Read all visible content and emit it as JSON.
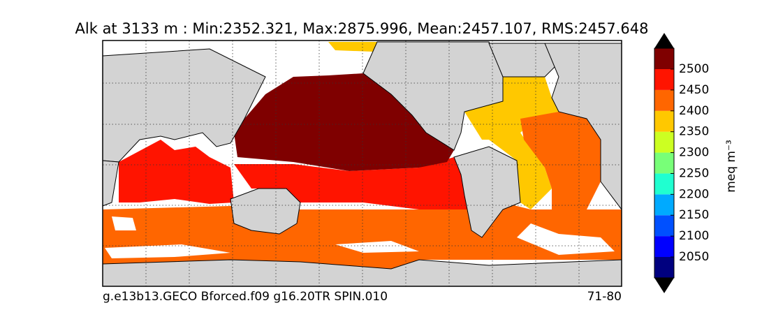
{
  "title": "Alk at 3133 m : Min:2352.321, Max:2875.996, Mean:2457.107, RMS:2457.648",
  "footer": {
    "left": "g.e13b13.GECO Bforced.f09 g16.20TR SPIN.010",
    "right": "71-80"
  },
  "colorbar": {
    "label": "meq m⁻³",
    "ticks": [
      2050,
      2100,
      2150,
      2200,
      2250,
      2300,
      2350,
      2400,
      2450,
      2500
    ],
    "colors": [
      "#00007f",
      "#0000ff",
      "#0050ff",
      "#00aaff",
      "#20ffd0",
      "#78ff78",
      "#ccff22",
      "#ffc800",
      "#ff6600",
      "#ff1400",
      "#7f0000"
    ],
    "extend_color": "#000000"
  }
}
